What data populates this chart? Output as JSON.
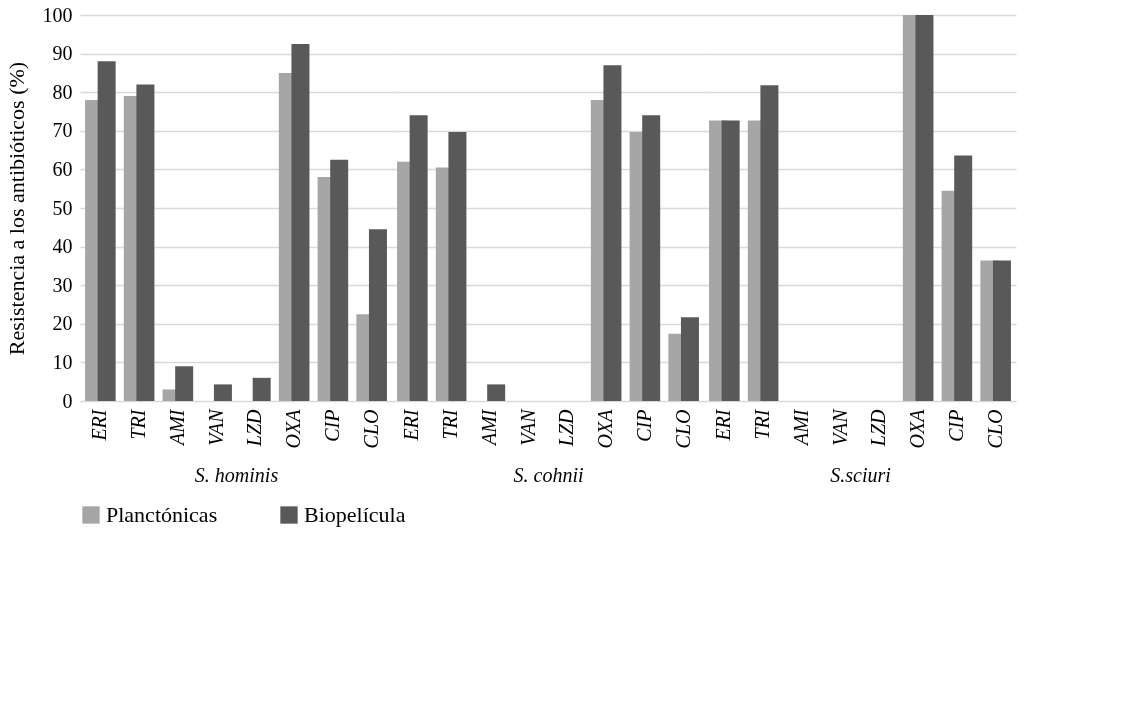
{
  "chart_data": [
    {
      "type": "bar",
      "xlabel": "S. hominis",
      "ylabel": "Resistencia  a los antibióticos  (%)",
      "categories": [
        "ERI",
        "TRI",
        "AMI",
        "VAN",
        "LZD",
        "OXA",
        "CIP",
        "CLO"
      ],
      "series": [
        {
          "name": "Planctónicas",
          "color": "#a6a6a6",
          "values": [
            78,
            79,
            3,
            0,
            0,
            85,
            58,
            22.5
          ]
        },
        {
          "name": "Biopelícula",
          "color": "#595959",
          "values": [
            88,
            82,
            9,
            4.3,
            6,
            92.5,
            62.5,
            44.5
          ]
        }
      ],
      "ylim": [
        0,
        100
      ],
      "yticks": [
        0,
        10,
        20,
        30,
        40,
        50,
        60,
        70,
        80,
        90,
        100
      ],
      "grid": "y",
      "legend": "bottom"
    },
    {
      "type": "bar",
      "xlabel": "S. cohnii",
      "categories": [
        "ERI",
        "TRI",
        "AMI",
        "VAN",
        "LZD",
        "OXA",
        "CIP",
        "CLO"
      ],
      "series": [
        {
          "name": "Planctónicas",
          "color": "#a6a6a6",
          "values": [
            62,
            60.5,
            0,
            0,
            0,
            78,
            69.7,
            17.4
          ]
        },
        {
          "name": "Biopelícula",
          "color": "#595959",
          "values": [
            74,
            69.7,
            4.3,
            0,
            0,
            87,
            74,
            21.7
          ]
        }
      ],
      "ylim": [
        0,
        100
      ],
      "yticks": [
        0,
        10,
        20,
        30,
        40,
        50,
        60,
        70,
        80,
        90,
        100
      ],
      "grid": "y",
      "legend": "bottom",
      "tick_labels": "x"
    },
    {
      "type": "bar",
      "xlabel": "S.sciuri",
      "categories": [
        "ERI",
        "TRI",
        "AMI",
        "VAN",
        "LZD",
        "OXA",
        "CIP",
        "CLO"
      ],
      "series": [
        {
          "name": "Planctónicas",
          "color": "#a6a6a6",
          "values": [
            72.7,
            72.7,
            0,
            0,
            0,
            100,
            54.5,
            36.4
          ]
        },
        {
          "name": "Biopelícula",
          "color": "#595959",
          "values": [
            72.7,
            81.8,
            0,
            0,
            0,
            100,
            63.6,
            36.4
          ]
        }
      ],
      "ylim": [
        0,
        100
      ],
      "yticks": [
        0,
        10,
        20,
        30,
        40,
        50,
        60,
        70,
        80,
        90,
        100
      ],
      "grid": "y",
      "legend": "bottom",
      "tick_labels": "x"
    }
  ]
}
